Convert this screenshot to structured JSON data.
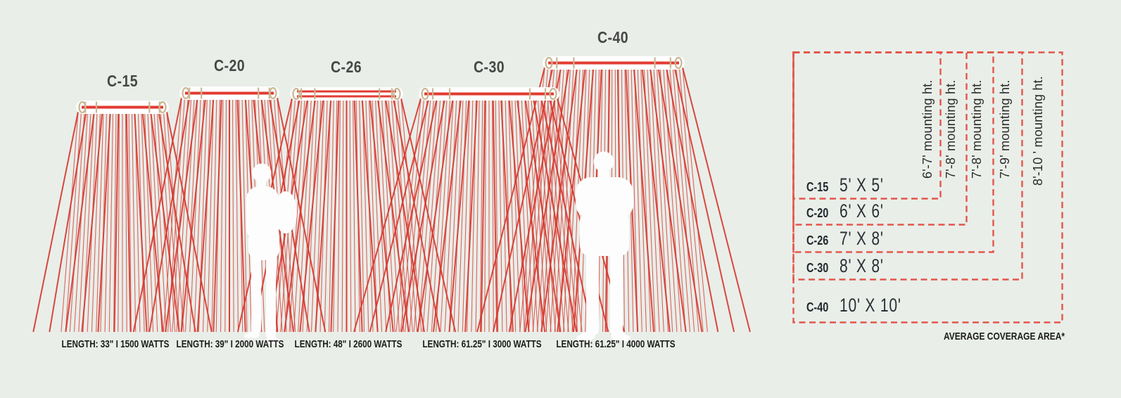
{
  "scene": {
    "background": "#e9eee9",
    "ray_color": "#d8382f",
    "element_color": "#e23b31",
    "bracket_color": "#c9b795",
    "heater_body_color": "#ffffff",
    "figure_color": "#fdfdfd",
    "dash_color": "#e4564b",
    "title_color": "#474747",
    "text_color": "#1c1c1a"
  },
  "heaters": [
    {
      "model": "C-15",
      "spec": "LENGTH: 33\" I 1500 WATTS"
    },
    {
      "model": "C-20",
      "spec": "LENGTH: 39\" I 2000 WATTS"
    },
    {
      "model": "C-26",
      "spec": "LENGTH: 48\" I 2600 WATTS"
    },
    {
      "model": "C-30",
      "spec": "LENGTH: 61.25\" I 3000 WATTS"
    },
    {
      "model": "C-40",
      "spec": "LENGTH: 61.25\" I 4000 WATTS"
    }
  ],
  "coverage_chart": {
    "footnote": "AVERAGE COVERAGE AREA*",
    "entries": [
      {
        "model": "C-15",
        "area": "5' X 5'",
        "mounting": "6'-7' mounting ht."
      },
      {
        "model": "C-20",
        "area": "6' X 6'",
        "mounting": "7'-8' mounting ht."
      },
      {
        "model": "C-26",
        "area": "7' X 8'",
        "mounting": "7'-8' mounting ht."
      },
      {
        "model": "C-30",
        "area": "8' X 8'",
        "mounting": "7'-9' mounting ht."
      },
      {
        "model": "C-40",
        "area": "10' X 10'",
        "mounting": "8'-10 ' mounting ht."
      }
    ]
  },
  "chart_data": {
    "type": "table",
    "title": "AVERAGE COVERAGE AREA*",
    "columns": [
      "model",
      "length_in",
      "watts",
      "coverage_area_ft",
      "mounting_height_ft"
    ],
    "rows": [
      [
        "C-15",
        "33\"",
        "1500",
        "5' X 5'",
        "6'-7'"
      ],
      [
        "C-20",
        "39\"",
        "2000",
        "6' X 6'",
        "7'-8'"
      ],
      [
        "C-26",
        "48\"",
        "2600",
        "7' X 8'",
        "7'-8'"
      ],
      [
        "C-30",
        "61.25\"",
        "3000",
        "8' X 8'",
        "7'-9'"
      ],
      [
        "C-40",
        "61.25\"",
        "4000",
        "10' X 10'",
        "8'-10'"
      ]
    ]
  }
}
